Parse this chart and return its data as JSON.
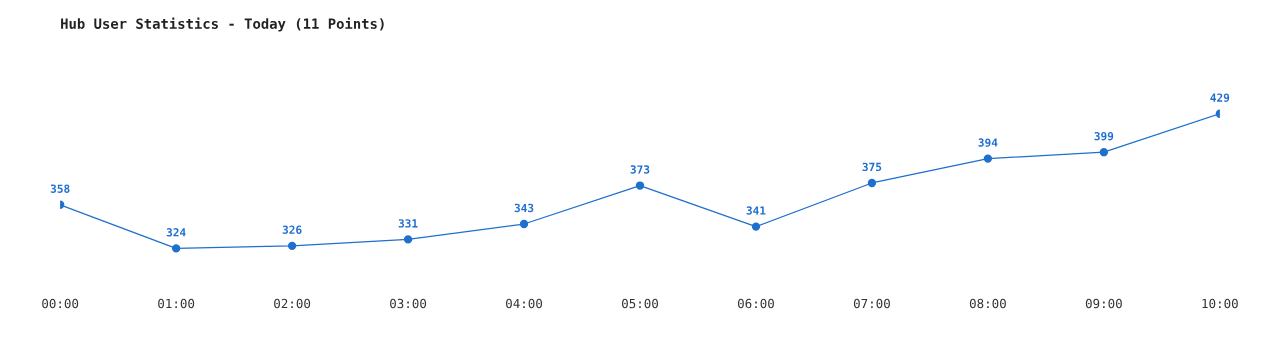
{
  "chart_data": {
    "type": "line",
    "title": "Hub User Statistics - Today (11 Points)",
    "categories": [
      "00:00",
      "01:00",
      "02:00",
      "03:00",
      "04:00",
      "05:00",
      "06:00",
      "07:00",
      "08:00",
      "09:00",
      "10:00"
    ],
    "series": [
      {
        "color": "#1f6fcf",
        "values": [
          358,
          324,
          326,
          331,
          343,
          373,
          341,
          375,
          394,
          399,
          429
        ]
      }
    ],
    "data_labels": true,
    "marker": "circle",
    "line_style": "solid",
    "grid": false,
    "legend": false,
    "tick_labels": "x"
  }
}
